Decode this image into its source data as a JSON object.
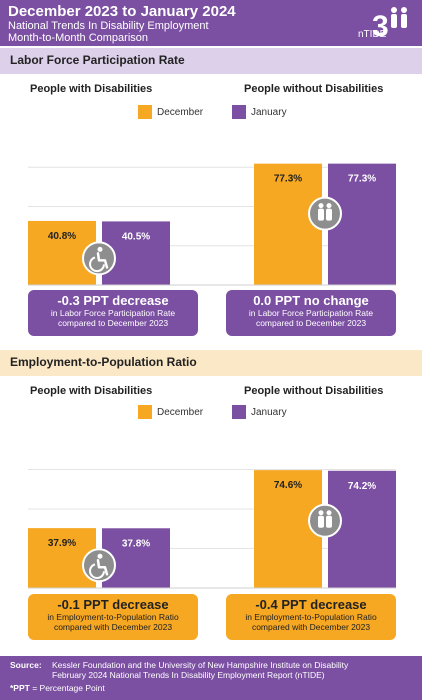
{
  "header": {
    "title": "December 2023 to January 2024",
    "subtitle1": "National Trends In Disability Employment",
    "subtitle2": "Month-to-Month Comparison",
    "logo_text": "nTIDE"
  },
  "legend": {
    "december": "December",
    "january": "January"
  },
  "colors": {
    "december": "#f6a823",
    "january": "#7b4fa2",
    "icon_circle": "#8e8e8e"
  },
  "sections": [
    {
      "title": "Labor Force Participation Rate",
      "groups": [
        {
          "label": "People with Disabilities",
          "icon": "wheelchair-icon",
          "callout": {
            "headline": "-0.3 PPT decrease",
            "line1": "in Labor Force Participation Rate",
            "line2": "compared to December 2023"
          }
        },
        {
          "label": "People without Disabilities",
          "icon": "people-icon",
          "callout": {
            "headline": "0.0 PPT no change",
            "line1": "in Labor Force Participation Rate",
            "line2": "compared to December 2023"
          }
        }
      ]
    },
    {
      "title": "Employment-to-Population Ratio",
      "groups": [
        {
          "label": "People with Disabilities",
          "icon": "wheelchair-icon",
          "callout": {
            "headline": "-0.1 PPT decrease",
            "line1": "in Employment-to-Population Ratio",
            "line2": "compared with December 2023"
          }
        },
        {
          "label": "People without Disabilities",
          "icon": "people-icon",
          "callout": {
            "headline": "-0.4 PPT decrease",
            "line1": "in Employment-to-Population Ratio",
            "line2": "compared with December 2023"
          }
        }
      ]
    }
  ],
  "chart_data": [
    {
      "type": "bar",
      "title": "Labor Force Participation Rate",
      "categories": [
        "People with Disabilities",
        "People without Disabilities"
      ],
      "series": [
        {
          "name": "December",
          "values": [
            40.8,
            77.3
          ],
          "labels": [
            "40.8%",
            "77.3%"
          ]
        },
        {
          "name": "January",
          "values": [
            40.5,
            77.3
          ],
          "labels": [
            "40.5%",
            "77.3%"
          ]
        }
      ],
      "ylim": [
        0,
        100
      ]
    },
    {
      "type": "bar",
      "title": "Employment-to-Population Ratio",
      "categories": [
        "People with Disabilities",
        "People without Disabilities"
      ],
      "series": [
        {
          "name": "December",
          "values": [
            37.9,
            74.6
          ],
          "labels": [
            "37.9%",
            "74.6%"
          ]
        },
        {
          "name": "January",
          "values": [
            37.8,
            74.2
          ],
          "labels": [
            "37.8%",
            "74.2%"
          ]
        }
      ],
      "ylim": [
        0,
        100
      ]
    }
  ],
  "footer": {
    "source_label": "Source:",
    "source_line1": "Kessler Foundation and the University of New Hampshire Institute on Disability",
    "source_line2": "February 2024 National Trends In Disability Employment Report (nTIDE)",
    "note_label": "*PPT",
    "note_text": " = Percentage Point"
  }
}
